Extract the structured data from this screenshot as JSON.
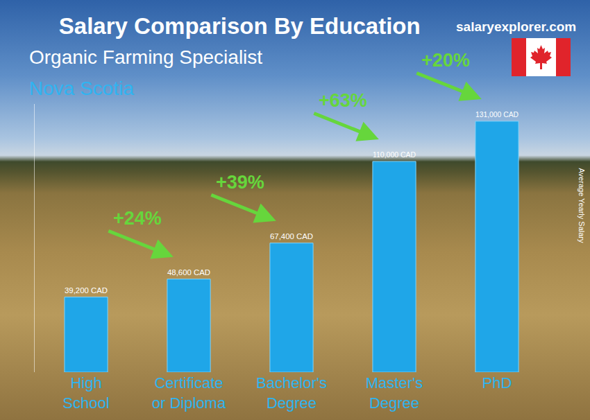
{
  "chart_data": {
    "type": "bar",
    "title": "Salary Comparison By Education",
    "subtitle": "Organic Farming Specialist",
    "region": "Nova Scotia",
    "source": "salaryexplorer.com",
    "y_label": "Average Yearly Salary",
    "categories": [
      "High School",
      "Certificate or Diploma",
      "Bachelor's Degree",
      "Master's Degree",
      "PhD"
    ],
    "values": [
      39200,
      48600,
      67400,
      110000,
      131000
    ],
    "value_labels": [
      "39,200 CAD",
      "48,600 CAD",
      "67,400 CAD",
      "110,000 CAD",
      "131,000 CAD"
    ],
    "annotations": [
      "+24%",
      "+39%",
      "+63%",
      "+20%"
    ],
    "color": "#1fa6e8",
    "ylim": [
      0,
      140000
    ],
    "yticks": [],
    "grid": false,
    "data_labels": true,
    "tick_labels": "x"
  }
}
